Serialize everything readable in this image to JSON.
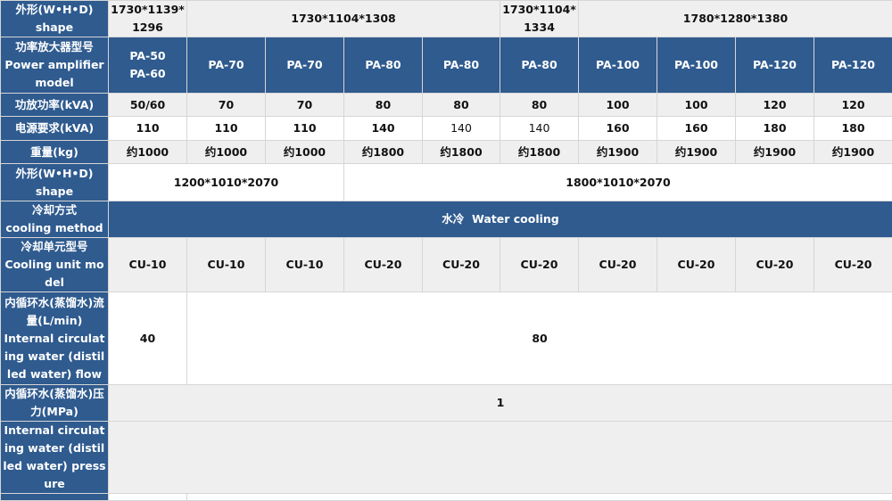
{
  "rows": {
    "shape1": {
      "label_cn": "外形(W•H•D)",
      "label_en": "shape",
      "values": [
        "1730*1139*1296",
        "1730*1104*1308",
        "1730*1104*1334",
        "1780*1280*1380"
      ]
    },
    "model": {
      "label_cn": "功率放大器型号",
      "label_en": "Power amplifier model",
      "values": [
        "PA-50",
        "PA-60",
        "PA-70",
        "PA-70",
        "PA-80",
        "PA-80",
        "PA-80",
        "PA-100",
        "PA-100",
        "PA-120",
        "PA-120"
      ]
    },
    "power": {
      "label": "功放功率(kVA)",
      "values": [
        "50/60",
        "70",
        "70",
        "80",
        "80",
        "80",
        "100",
        "100",
        "120",
        "120"
      ]
    },
    "supply": {
      "label": "电源要求(kVA)",
      "values": [
        "110",
        "110",
        "110",
        "140",
        "140",
        "140",
        "160",
        "160",
        "180",
        "180"
      ]
    },
    "weight": {
      "label": "重量(kg)",
      "values": [
        "约1000",
        "约1000",
        "约1000",
        "约1800",
        "约1800",
        "约1800",
        "约1900",
        "约1900",
        "约1900",
        "约1900"
      ]
    },
    "shape2": {
      "label_cn": "外形(W•H•D)",
      "label_en": "shape",
      "values": [
        "1200*1010*2070",
        "1800*1010*2070"
      ]
    },
    "cooling": {
      "label_cn": "冷却方式",
      "label_en": "cooling method",
      "value": "水冷  Water cooling"
    },
    "cooling_unit": {
      "label_cn": "冷却单元型号",
      "label_en": "Cooling unit model",
      "values": [
        "CU-10",
        "CU-10",
        "CU-10",
        "CU-20",
        "CU-20",
        "CU-20",
        "CU-20",
        "CU-20",
        "CU-20",
        "CU-20"
      ]
    },
    "flow": {
      "label_cn": "内循环水(蒸馏水)流量(L/min)",
      "label_en": "Internal circulating water (distilled water) flow",
      "values": [
        "40",
        "80"
      ]
    },
    "pressure": {
      "label_cn": "内循环水(蒸馏水)压力(MPa)",
      "value": "1"
    },
    "pressure_en": {
      "label_en": "Internal circulating water (distilled water) pressure"
    }
  },
  "colors": {
    "header_blue": "#2f5b8f",
    "row_gray": "#efefef",
    "border": "#d6d6d6"
  }
}
